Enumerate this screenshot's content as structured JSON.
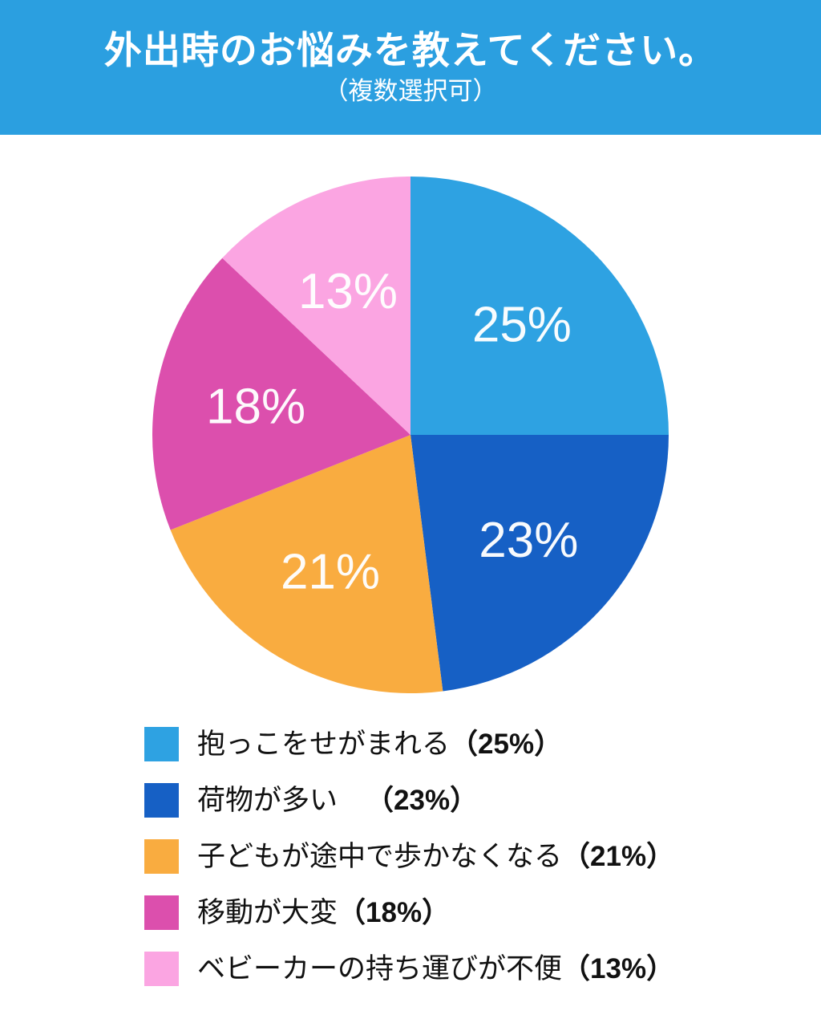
{
  "header": {
    "title": "外出時のお悩みを教えてください。",
    "subtitle": "（複数選択可）",
    "bg_color": "#2B9FE0",
    "text_color": "#FFFFFF"
  },
  "chart_data": {
    "type": "pie",
    "title": "外出時のお悩みを教えてください。（複数選択可）",
    "unit": "%",
    "total": 100,
    "start_angle_deg": 0,
    "direction": "clockwise",
    "legend_position": "bottom-left",
    "label_color": "#FFFFFF",
    "slices": [
      {
        "label": "抱っこをせがまれる",
        "value": 25,
        "data_label": "25%",
        "pct": "（25%）",
        "color": "#2EA2E2"
      },
      {
        "label": "荷物が多い　",
        "value": 23,
        "data_label": "23%",
        "pct": "（23%）",
        "color": "#1660C5"
      },
      {
        "label": "子どもが途中で歩かなくなる",
        "value": 21,
        "data_label": "21%",
        "pct": "（21%）",
        "color": "#F9AC40"
      },
      {
        "label": "移動が大変",
        "value": 18,
        "data_label": "18%",
        "pct": "（18%）",
        "color": "#DC4FAD"
      },
      {
        "label": "ベビーカーの持ち運びが不便",
        "value": 13,
        "data_label": "13%",
        "pct": "（13%）",
        "color": "#FBA5E2"
      }
    ]
  }
}
